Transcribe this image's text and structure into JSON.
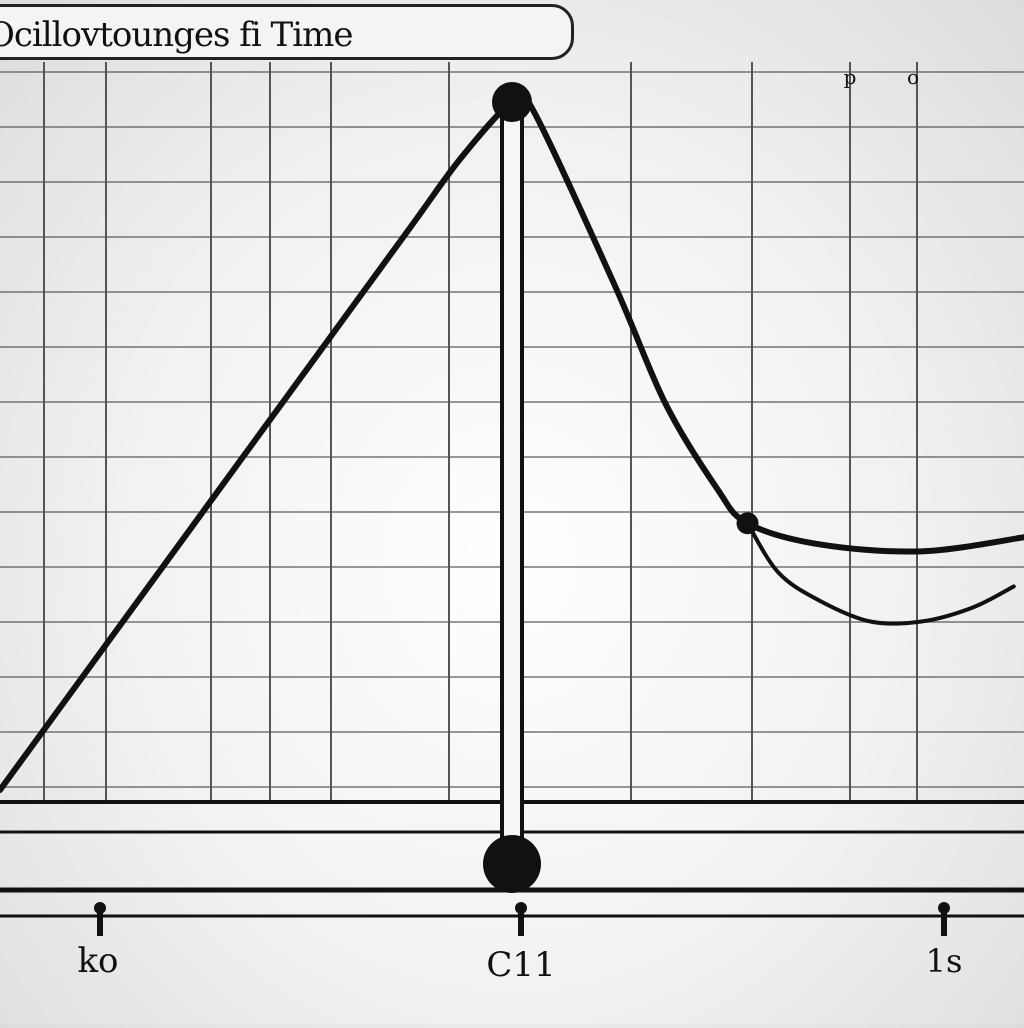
{
  "chart_data": {
    "type": "line",
    "title": "Ocillovtounges fi Time",
    "x_tick_labels": [
      "ko",
      "C11",
      "1s"
    ],
    "top_marks": [
      "p",
      "o"
    ],
    "xlim": [
      0,
      1
    ],
    "ylim": [
      0,
      1
    ],
    "grid": true,
    "series": [
      {
        "x": [
          0.0,
          0.1,
          0.2,
          0.3,
          0.4,
          0.45,
          0.5,
          0.52,
          0.6,
          0.65,
          0.7,
          0.73,
          0.8,
          0.9,
          1.0
        ],
        "y": [
          0.0,
          0.2,
          0.4,
          0.6,
          0.8,
          0.9,
          0.98,
          0.97,
          0.72,
          0.55,
          0.43,
          0.38,
          0.35,
          0.34,
          0.36
        ]
      },
      {
        "x": [
          0.73,
          0.76,
          0.8,
          0.85,
          0.9,
          0.95,
          0.99
        ],
        "y": [
          0.38,
          0.31,
          0.27,
          0.24,
          0.24,
          0.26,
          0.29
        ]
      }
    ],
    "markers": [
      {
        "x": 0.5,
        "y": 0.98
      },
      {
        "x": 0.73,
        "y": 0.38
      }
    ],
    "vertical_marker_x": 0.5
  },
  "colors": {
    "line": "#111111",
    "grid": "#555555",
    "background": "#f2f2f2"
  }
}
